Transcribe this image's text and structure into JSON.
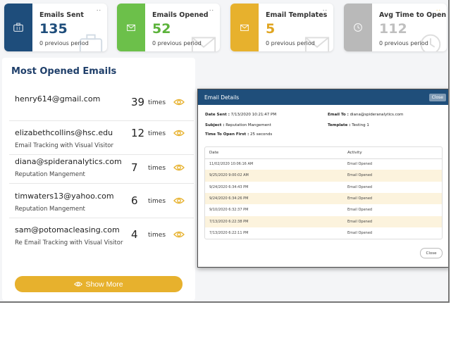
{
  "stats": [
    {
      "title": "Emails Sent",
      "value": "135",
      "prev": "0 previous period",
      "icon": "briefcase-icon",
      "accent": "#1e4d7b",
      "value_color": "#1e4d7b"
    },
    {
      "title": "Emails Opened",
      "value": "52",
      "prev": "0 previous period",
      "icon": "envelope-icon",
      "accent": "#6cc04a",
      "value_color": "#5cb33b"
    },
    {
      "title": "Email Templates",
      "value": "5",
      "prev": "0 previous period",
      "icon": "envelope-icon",
      "accent": "#e7b12d",
      "value_color": "#e0a521"
    },
    {
      "title": "Avg Time to Open",
      "value": "112",
      "prev": "0 previous period",
      "icon": "clock-icon",
      "accent": "#b9b9b9",
      "value_color": "#bfbfbf"
    }
  ],
  "menu_dots": "..",
  "most_opened": {
    "title": "Most Opened Emails",
    "rows": [
      {
        "email": "henry614@gmail.com",
        "subject": "",
        "count": "39",
        "unit": "times"
      },
      {
        "email": "elizabethcollins@hsc.edu",
        "subject": "Email Tracking with Visual Visitor",
        "count": "12",
        "unit": "times"
      },
      {
        "email": "diana@spideranalytics.com",
        "subject": "Reputation Mangement",
        "count": "7",
        "unit": "times"
      },
      {
        "email": "timwaters13@yahoo.com",
        "subject": "Reputation Mangement",
        "count": "6",
        "unit": "times"
      },
      {
        "email": "sam@potomacleasing.com",
        "subject": "Re Email Tracking with Visual Visitor",
        "count": "4",
        "unit": "times"
      }
    ],
    "show_more": "Show More"
  },
  "modal": {
    "title": "Email Details",
    "close_top": "Close",
    "date_sent_label": "Date Sent :",
    "date_sent": "7/13/2020 10:21:47 PM",
    "subject_label": "Subject :",
    "subject": "Reputation Mangement",
    "time_to_open_label": "Time To Open First :",
    "time_to_open": "25 seconds",
    "email_to_label": "Email To :",
    "email_to": "diana@spideranalytics.com",
    "template_label": "Template :",
    "template": "Testing 1",
    "col_date": "Date",
    "col_activity": "Activity",
    "rows": [
      {
        "date": "11/02/2020 10:06:16 AM",
        "activity": "Email Opened"
      },
      {
        "date": "9/25/2020 9:00:02 AM",
        "activity": "Email Opened"
      },
      {
        "date": "9/24/2020 6:34:43 PM",
        "activity": "Email Opened"
      },
      {
        "date": "9/24/2020 6:34:26 PM",
        "activity": "Email Opened"
      },
      {
        "date": "9/10/2020 6:32:37 PM",
        "activity": "Email Opened"
      },
      {
        "date": "7/13/2020 6:22:38 PM",
        "activity": "Email Opened"
      },
      {
        "date": "7/13/2020 6:22:11 PM",
        "activity": "Email Opened"
      }
    ],
    "close_bottom": "Close"
  },
  "colors": {
    "title_blue": "#1f3f6a",
    "accent_yellow": "#e7b12d",
    "header_blue": "#1f4e7a"
  }
}
